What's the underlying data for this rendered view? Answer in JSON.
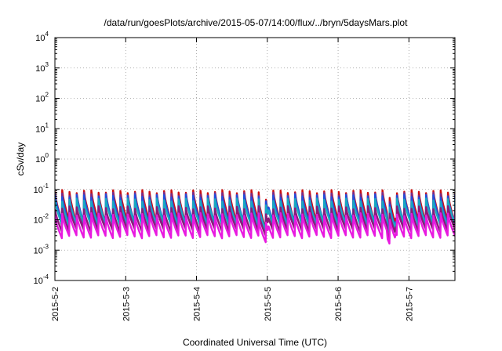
{
  "chart_data": {
    "type": "line",
    "title": "/data/run/goesPlots/archive/2015-05-07/14:00/flux/../bryn/5daysMars.plot",
    "xlabel": "Coordinated Universal Time (UTC)",
    "ylabel": "cSv/day",
    "yscale": "log",
    "ylim": [
      0.0001,
      10000
    ],
    "y_ticks": [
      {
        "value": 0.0001,
        "base": "10",
        "exp": "-4"
      },
      {
        "value": 0.001,
        "base": "10",
        "exp": "-3"
      },
      {
        "value": 0.01,
        "base": "10",
        "exp": "-2"
      },
      {
        "value": 0.1,
        "base": "10",
        "exp": "-1"
      },
      {
        "value": 1,
        "base": "10",
        "exp": "0"
      },
      {
        "value": 10,
        "base": "10",
        "exp": "1"
      },
      {
        "value": 100,
        "base": "10",
        "exp": "2"
      },
      {
        "value": 1000,
        "base": "10",
        "exp": "3"
      },
      {
        "value": 10000,
        "base": "10",
        "exp": "4"
      }
    ],
    "x_range_days": [
      0,
      5.65
    ],
    "x_ticks": [
      {
        "day": 0,
        "label": "2015-5-2"
      },
      {
        "day": 1,
        "label": "2015-5-3"
      },
      {
        "day": 2,
        "label": "2015-5-4"
      },
      {
        "day": 3,
        "label": "2015-5-5"
      },
      {
        "day": 4,
        "label": "2015-5-6"
      },
      {
        "day": 5,
        "label": "2015-5-7"
      }
    ],
    "grid": true,
    "cycle_days": 0.1028,
    "series": [
      {
        "color": "#cc1010",
        "peak": 0.085,
        "trough": 0.0085
      },
      {
        "color": "#7a2a8a",
        "peak": 0.07,
        "trough": 0.006
      },
      {
        "color": "#2050e0",
        "peak": 0.06,
        "trough": 0.008
      },
      {
        "color": "#1aa8c0",
        "peak": 0.045,
        "trough": 0.007
      },
      {
        "color": "#8a1a7a",
        "peak": 0.025,
        "trough": 0.0045
      },
      {
        "color": "#e81ae0",
        "peak": 0.015,
        "trough": 0.0028
      }
    ]
  }
}
